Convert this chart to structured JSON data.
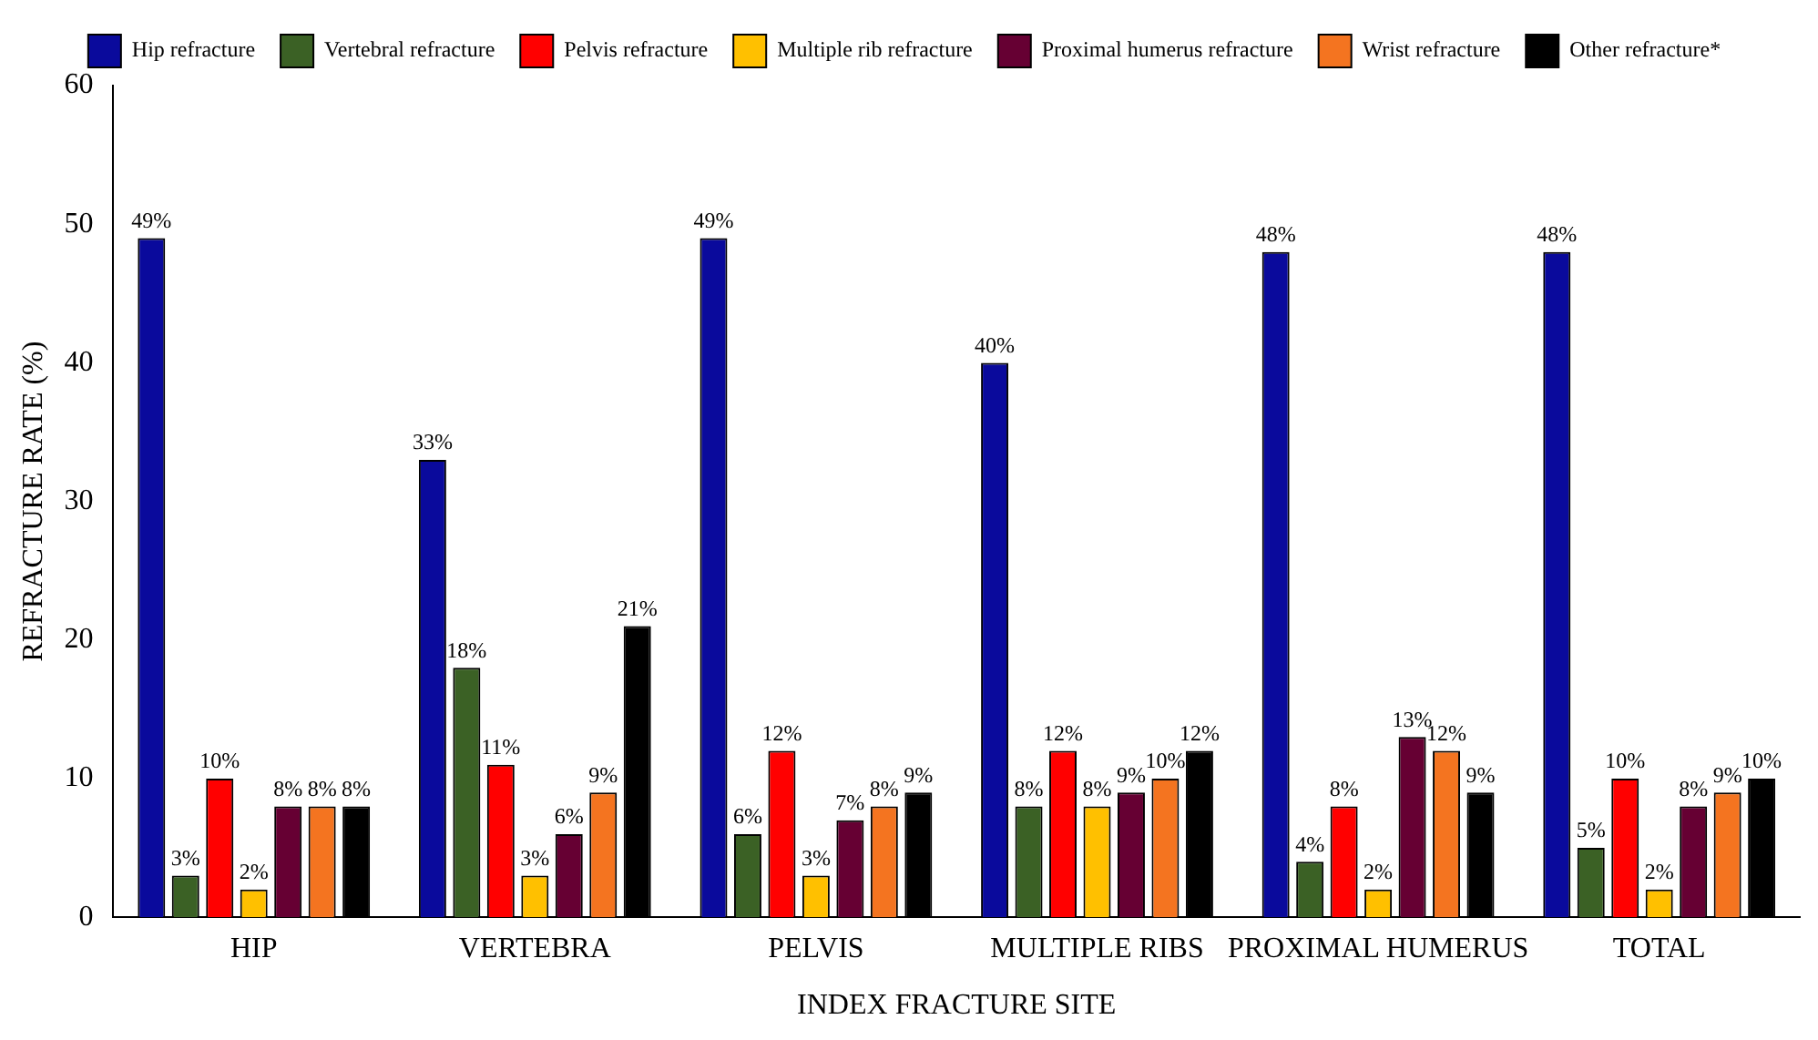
{
  "chart_data": {
    "type": "bar",
    "xlabel": "INDEX FRACTURE SITE",
    "ylabel": "REFRACTURE RATE (%)",
    "categories": [
      "HIP",
      "VERTEBRA",
      "PELVIS",
      "MULTIPLE RIBS",
      "PROXIMAL HUMERUS",
      "TOTAL"
    ],
    "series": [
      {
        "name": "Hip refracture",
        "color": "#0a0a9c",
        "values": [
          49,
          33,
          49,
          40,
          48,
          48
        ],
        "value_labels": [
          "49%",
          "33%",
          "49%",
          "40%",
          "48%",
          "48%"
        ]
      },
      {
        "name": "Vertebral refracture",
        "color": "#3b6125",
        "values": [
          3,
          18,
          6,
          8,
          4,
          5
        ],
        "value_labels": [
          "3%",
          "18%",
          "6%",
          "8%",
          "4%",
          "5%"
        ]
      },
      {
        "name": "Pelvis refracture",
        "color": "#ff0000",
        "values": [
          10,
          11,
          12,
          12,
          8,
          10
        ],
        "value_labels": [
          "10%",
          "11%",
          "12%",
          "12%",
          "8%",
          "10%"
        ]
      },
      {
        "name": "Multiple rib refracture",
        "color": "#ffc000",
        "values": [
          2,
          3,
          3,
          8,
          2,
          2
        ],
        "value_labels": [
          "2%",
          "3%",
          "3%",
          "8%",
          "2%",
          "2%"
        ]
      },
      {
        "name": "Proximal humerus refracture",
        "color": "#660033",
        "values": [
          8,
          6,
          7,
          9,
          13,
          8
        ],
        "value_labels": [
          "8%",
          "6%",
          "7%",
          "9%",
          "13%",
          "8%"
        ]
      },
      {
        "name": "Wrist refracture",
        "color": "#f47420",
        "values": [
          8,
          9,
          8,
          10,
          12,
          9
        ],
        "value_labels": [
          "8%",
          "9%",
          "8%",
          "10%",
          "12%",
          "9%"
        ]
      },
      {
        "name": "Other refracture*",
        "color": "#000000",
        "values": [
          8,
          21,
          9,
          12,
          9,
          10
        ],
        "value_labels": [
          "8%",
          "21%",
          "9%",
          "12%",
          "9%",
          "10%"
        ]
      }
    ],
    "ylim": [
      0,
      60
    ],
    "yticks": [
      0,
      10,
      20,
      30,
      40,
      50,
      60
    ],
    "grid": false,
    "legend": "top"
  }
}
